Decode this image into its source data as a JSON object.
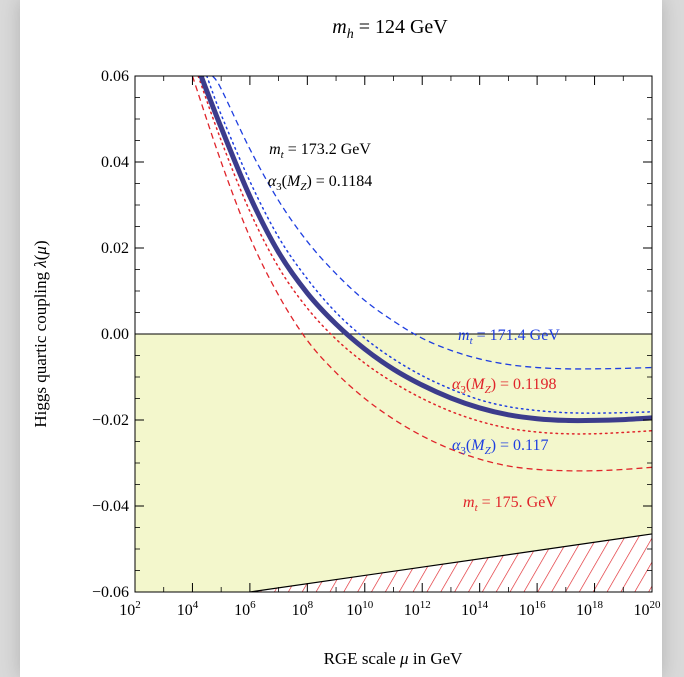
{
  "chart_data": {
    "type": "line",
    "title": "m_h = 124 GeV",
    "xlabel": "RGE scale μ in GeV",
    "ylabel": "Higgs quartic coupling λ(μ)",
    "xscale": "log10",
    "xlim": [
      2,
      20
    ],
    "ylim": [
      -0.06,
      0.06
    ],
    "xticks": [
      2,
      4,
      6,
      8,
      10,
      12,
      14,
      16,
      18,
      20
    ],
    "yticks": [
      -0.06,
      -0.04,
      -0.02,
      0.0,
      0.02,
      0.04,
      0.06
    ],
    "ytick_labels": [
      "−0.06",
      "−0.04",
      "−0.02",
      "0.00",
      "0.02",
      "0.04",
      "0.06"
    ],
    "annotation": {
      "mt": "m_t = 173.2 GeV",
      "alpha": "α3(MZ) = 0.1184"
    },
    "series": [
      {
        "name": "m_t = 173.2 GeV",
        "style": "solid",
        "color": "#3c3c8c",
        "x": [
          4.3,
          5,
          6,
          7,
          8,
          9,
          10,
          11,
          12,
          13,
          14,
          15,
          16,
          17,
          18,
          19,
          20
        ],
        "y": [
          0.06,
          0.048,
          0.032,
          0.019,
          0.0095,
          0.0023,
          -0.0035,
          -0.0082,
          -0.0119,
          -0.0149,
          -0.0172,
          -0.0188,
          -0.0197,
          -0.0201,
          -0.0201,
          -0.0199,
          -0.0195
        ]
      },
      {
        "name": "m_t = 171.4 GeV",
        "style": "dashed",
        "color": "#1f3fe0",
        "x": [
          4.7,
          5,
          6,
          7,
          8,
          9,
          10,
          11,
          12,
          13,
          14,
          15,
          16,
          17,
          18,
          19,
          20
        ],
        "y": [
          0.06,
          0.057,
          0.043,
          0.031,
          0.0215,
          0.014,
          0.0078,
          0.003,
          -0.001,
          -0.0038,
          -0.0058,
          -0.0071,
          -0.0078,
          -0.0081,
          -0.0081,
          -0.008,
          -0.0078
        ]
      },
      {
        "name": "α3(MZ) = 0.117",
        "style": "dotted",
        "color": "#1f3fe0",
        "x": [
          4.5,
          5,
          6,
          7,
          8,
          9,
          10,
          11,
          12,
          13,
          14,
          15,
          16,
          17,
          18,
          19,
          20
        ],
        "y": [
          0.06,
          0.051,
          0.0355,
          0.0225,
          0.0128,
          0.005,
          -0.001,
          -0.0058,
          -0.0097,
          -0.0128,
          -0.0153,
          -0.0169,
          -0.0178,
          -0.0183,
          -0.0184,
          -0.0183,
          -0.0181
        ]
      },
      {
        "name": "α3(MZ) = 0.1198",
        "style": "dotted",
        "color": "#e0242a",
        "x": [
          4.2,
          5,
          6,
          7,
          8,
          9,
          10,
          11,
          12,
          13,
          14,
          15,
          16,
          17,
          18,
          19,
          20
        ],
        "y": [
          0.06,
          0.045,
          0.0285,
          0.0155,
          0.006,
          -0.0012,
          -0.0068,
          -0.0113,
          -0.015,
          -0.018,
          -0.0203,
          -0.0219,
          -0.0228,
          -0.0232,
          -0.0232,
          -0.0229,
          -0.0225
        ]
      },
      {
        "name": "m_t = 175. GeV",
        "style": "dashed",
        "color": "#e0242a",
        "x": [
          4.0,
          5,
          6,
          7,
          8,
          9,
          10,
          11,
          12,
          13,
          14,
          15,
          16,
          17,
          18,
          19,
          20
        ],
        "y": [
          0.06,
          0.04,
          0.0225,
          0.009,
          -0.0015,
          -0.009,
          -0.015,
          -0.0198,
          -0.0237,
          -0.0268,
          -0.0291,
          -0.0307,
          -0.0315,
          -0.0318,
          -0.0318,
          -0.0315,
          -0.031
        ]
      }
    ],
    "regions": {
      "instability": {
        "from_y": -0.06,
        "to_y": 0.0,
        "color": "#f3f7cc",
        "lower_boundary_x": [
          6,
          20
        ],
        "lower_boundary_y": [
          -0.06,
          -0.0465
        ]
      },
      "hatched": {
        "color": "#e0242a",
        "x": [
          6,
          20
        ],
        "upper_y": [
          -0.06,
          -0.0465
        ]
      }
    },
    "labels": {
      "mt1714": "m_t = 171.4 GeV",
      "a1198": "α3(MZ) = 0.1198",
      "a117": "α3(MZ) = 0.117",
      "mt175": "m_t = 175. GeV"
    }
  }
}
